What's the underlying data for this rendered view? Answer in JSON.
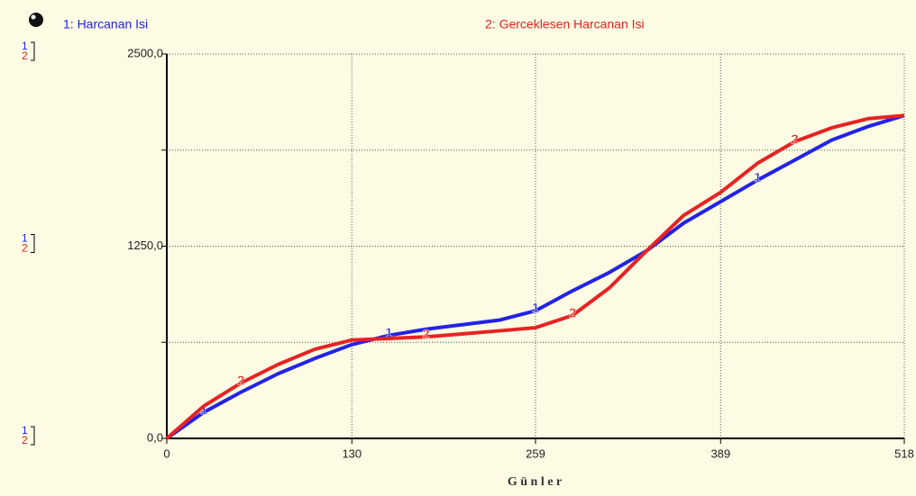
{
  "chart_data": {
    "type": "line",
    "xlabel": "G ü n l e r",
    "x": [
      0,
      26,
      52,
      78,
      104,
      130,
      156,
      182,
      208,
      234,
      259,
      285,
      311,
      337,
      363,
      389,
      415,
      441,
      467,
      493,
      518
    ],
    "series": [
      {
        "name": "1: Harcanan Isi",
        "color": "#2323e6",
        "marker": "1",
        "values": [
          0,
          170,
          300,
          420,
          520,
          610,
          670,
          710,
          740,
          770,
          830,
          960,
          1080,
          1220,
          1400,
          1540,
          1680,
          1810,
          1940,
          2030,
          2100
        ]
      },
      {
        "name": "2: Gerceklesen Harcanan Isi",
        "color": "#e62323",
        "marker": "2",
        "values": [
          0,
          210,
          360,
          480,
          580,
          640,
          650,
          660,
          680,
          700,
          720,
          800,
          980,
          1220,
          1450,
          1600,
          1790,
          1930,
          2020,
          2080,
          2100
        ]
      }
    ],
    "xlim": [
      0,
      518
    ],
    "xticks": [
      0,
      130,
      259,
      389,
      518
    ],
    "ylim": [
      0,
      2500
    ],
    "yticks": [
      {
        "value": 0,
        "label": "0,0"
      },
      {
        "value": 1250,
        "label": "1250,0"
      },
      {
        "value": 2500,
        "label": "2500,0"
      }
    ],
    "yminor": [
      625,
      1875
    ],
    "grid": true
  }
}
